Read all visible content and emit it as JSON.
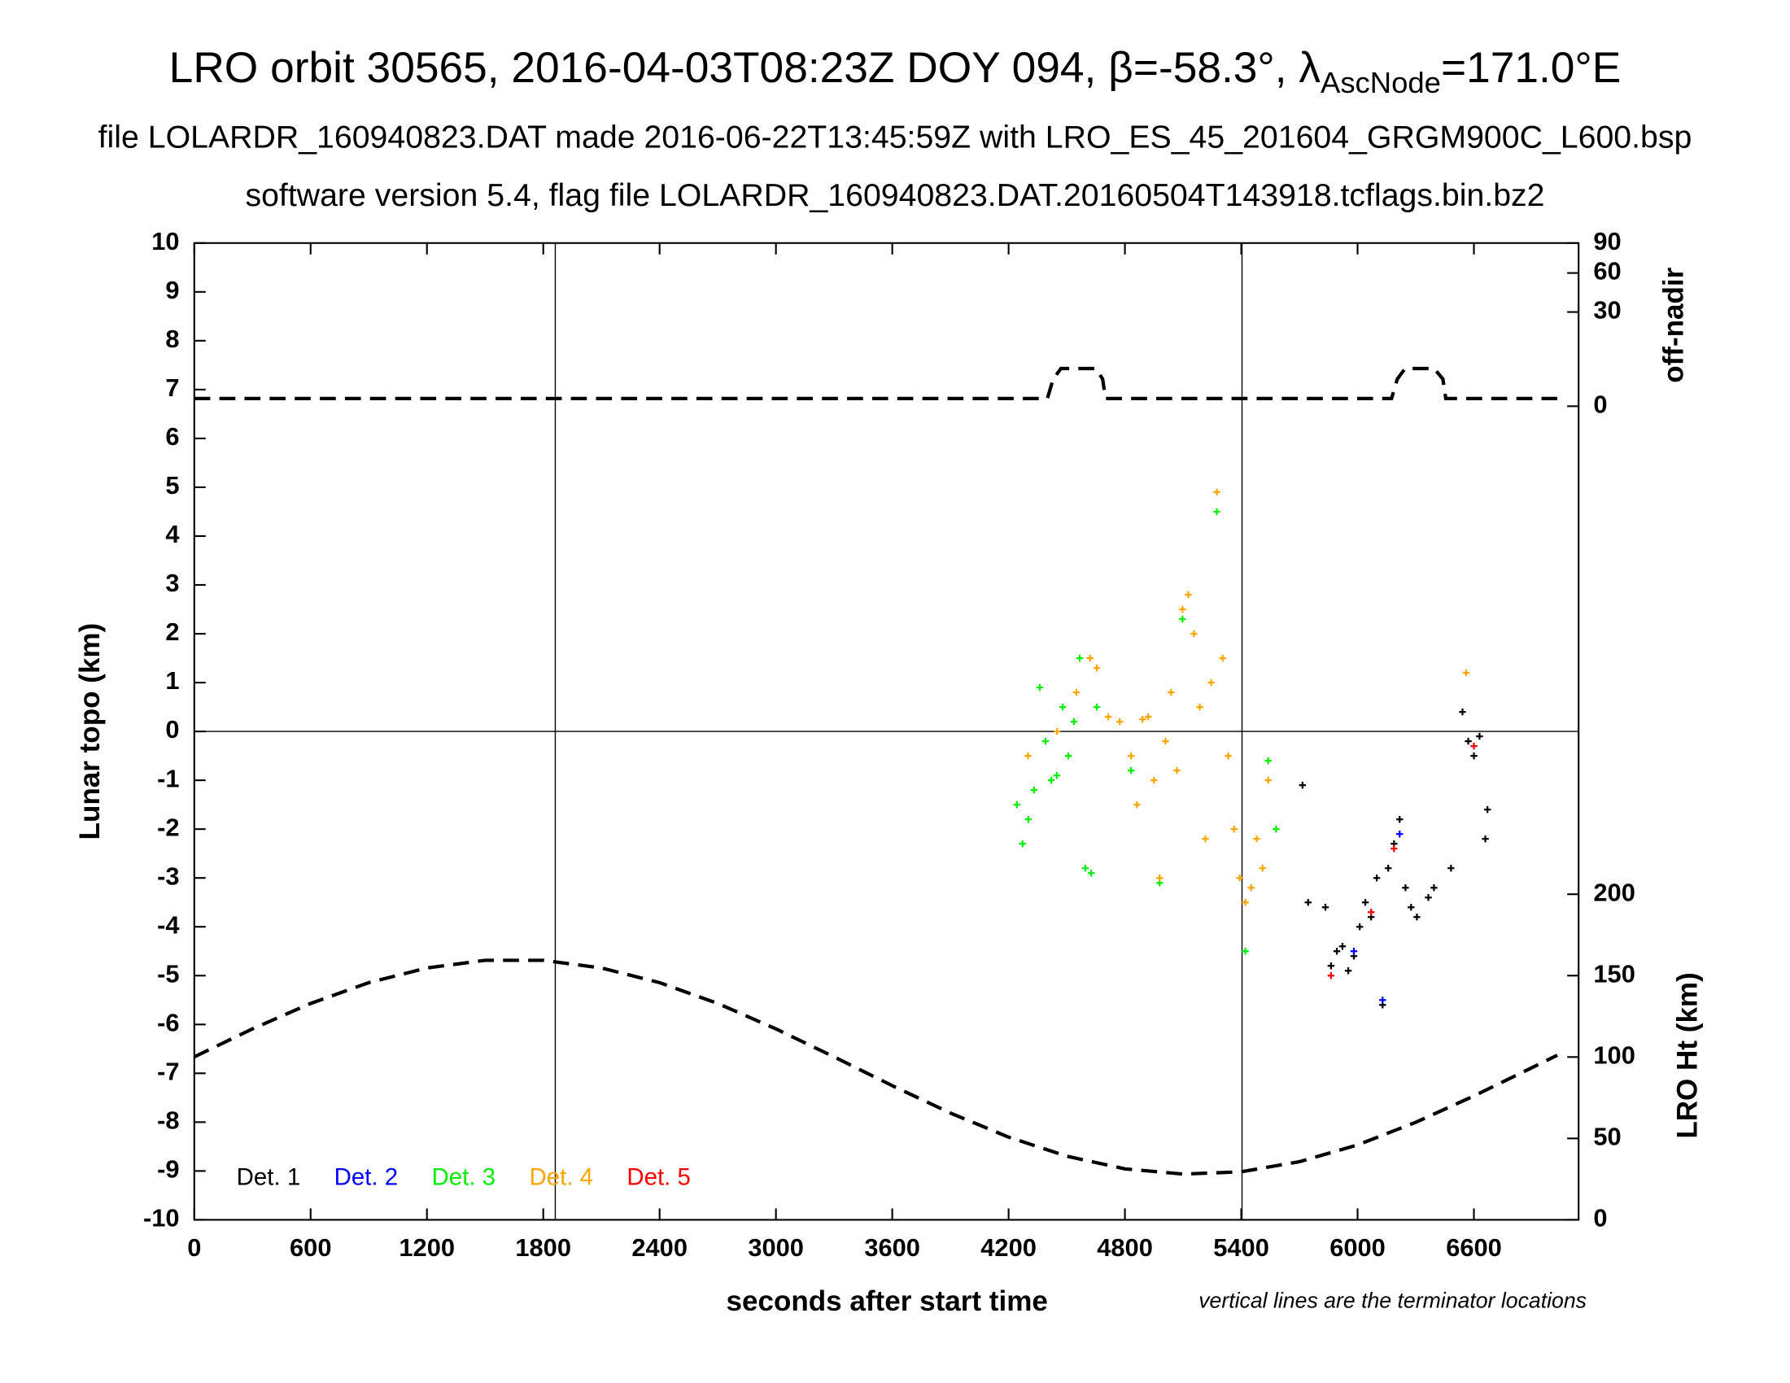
{
  "chart_data": {
    "type": "scatter",
    "title": "LRO orbit 30565, 2016-04-03T08:23Z DOY 094, β=-58.3°, λ",
    "title_sub": "AscNode",
    "title_end": "=171.0°E",
    "subtitle": "file LOLARDR_160940823.DAT made 2016-06-22T13:45:59Z with LRO_ES_45_201604_GRGM900C_L600.bsp",
    "subtitle2": "software version 5.4, flag file LOLARDR_160940823.DAT.20160504T143918.tcflags.bin.bz2",
    "xlabel": "seconds after start time",
    "ylabel": "Lunar topo (km)",
    "y2label": "LRO Ht (km)",
    "y3label": "off-nadir",
    "annotation": "vertical lines are the terminator locations",
    "xlim": [
      0,
      7140
    ],
    "xticks": [
      0,
      600,
      1200,
      1800,
      2400,
      3000,
      3600,
      4200,
      4800,
      5400,
      6000,
      6600
    ],
    "ylim": [
      -10,
      10
    ],
    "yticks": [
      -10,
      -9,
      -8,
      -7,
      -6,
      -5,
      -4,
      -3,
      -2,
      -1,
      0,
      1,
      2,
      3,
      4,
      5,
      6,
      7,
      8,
      9,
      10
    ],
    "y2lim": [
      0,
      600
    ],
    "y2ticks": [
      0,
      50,
      100,
      150,
      200
    ],
    "y3lim": [
      0,
      90
    ],
    "y3ticks": [
      0,
      30,
      60,
      90
    ],
    "y3scale": "sqrt",
    "terminators": [
      1862,
      5404
    ],
    "zero_line": 0,
    "series": [
      {
        "name": "Det. 1",
        "color": "#000000",
        "x": [
          5716,
          5745,
          5834,
          5863,
          5893,
          5922,
          5952,
          5981,
          6011,
          6040,
          6070,
          6099,
          6129,
          6158,
          6188,
          6217,
          6247,
          6276,
          6306,
          6365,
          6394,
          6482,
          6541,
          6571,
          6600,
          6629,
          6659,
          6670
        ],
        "values": [
          -1.1,
          -3.5,
          -3.6,
          -4.8,
          -4.5,
          -4.4,
          -4.9,
          -4.6,
          -4.0,
          -3.5,
          -3.8,
          -3.0,
          -5.6,
          -2.8,
          -2.3,
          -1.8,
          -3.2,
          -3.6,
          -3.8,
          -3.4,
          -3.2,
          -2.8,
          0.4,
          -0.2,
          -0.5,
          -0.1,
          -2.2,
          -1.6
        ]
      },
      {
        "name": "Det. 2",
        "color": "#0000ff",
        "x": [
          5981,
          6129,
          6217
        ],
        "values": [
          -4.5,
          -5.5,
          -2.1
        ]
      },
      {
        "name": "Det. 3",
        "color": "#00ee00",
        "x": [
          4243,
          4272,
          4302,
          4331,
          4361,
          4390,
          4420,
          4449,
          4479,
          4508,
          4537,
          4567,
          4596,
          4626,
          4655,
          4832,
          4979,
          5097,
          5274,
          5421,
          5539,
          5580
        ],
        "values": [
          -1.5,
          -2.3,
          -1.8,
          -1.2,
          0.9,
          -0.2,
          -1.0,
          -0.9,
          0.5,
          -0.5,
          0.2,
          1.5,
          -2.8,
          -2.9,
          0.5,
          -0.8,
          -3.1,
          2.3,
          4.5,
          -4.5,
          -0.6,
          -2.0
        ]
      },
      {
        "name": "Det. 4",
        "color": "#ffa500",
        "x": [
          4300,
          4450,
          4550,
          4620,
          4655,
          4714,
          4773,
          4832,
          4862,
          4891,
          4920,
          4950,
          4979,
          5009,
          5038,
          5068,
          5097,
          5127,
          5156,
          5186,
          5215,
          5245,
          5274,
          5304,
          5333,
          5363,
          5392,
          5421,
          5451,
          5480,
          5510,
          5539,
          6560
        ],
        "values": [
          -0.5,
          0.0,
          0.8,
          1.5,
          1.3,
          0.3,
          0.2,
          -0.5,
          -1.5,
          0.25,
          0.3,
          -1.0,
          -3.0,
          -0.2,
          0.8,
          -0.8,
          2.5,
          2.8,
          2.0,
          0.5,
          -2.2,
          1.0,
          4.9,
          1.5,
          -0.5,
          -2.0,
          -3.0,
          -3.5,
          -3.2,
          -2.2,
          -2.8,
          -1.0,
          1.2
        ]
      },
      {
        "name": "Det. 5",
        "color": "#ff0000",
        "x": [
          5863,
          6070,
          6188,
          6600
        ],
        "values": [
          -5.0,
          -3.7,
          -2.4,
          -0.3
        ]
      }
    ],
    "off_nadir": {
      "axis": "y3",
      "x": [
        0,
        4400,
        4430,
        4470,
        4650,
        4685,
        4700,
        6175,
        6205,
        6245,
        6395,
        6440,
        6455,
        7030
      ],
      "values": [
        0.2,
        0.2,
        2.5,
        4.8,
        4.8,
        2.5,
        0.2,
        0.2,
        2.5,
        4.8,
        4.8,
        2.5,
        0.2,
        0.2
      ]
    },
    "altitude": {
      "axis": "y2",
      "x": [
        0,
        300,
        600,
        900,
        1200,
        1500,
        1800,
        2100,
        2400,
        2700,
        3000,
        3300,
        3600,
        3900,
        4200,
        4500,
        4800,
        5100,
        5400,
        5700,
        6000,
        6300,
        6600,
        6900,
        7030
      ],
      "values": [
        100.1,
        117.3,
        132.9,
        145.7,
        154.7,
        159.4,
        159.4,
        154.7,
        145.7,
        132.9,
        117.3,
        100.1,
        82.4,
        65.6,
        50.8,
        39.1,
        31.3,
        28.1,
        29.5,
        35.7,
        46.0,
        59.9,
        76.1,
        93.5,
        101.1
      ]
    }
  }
}
